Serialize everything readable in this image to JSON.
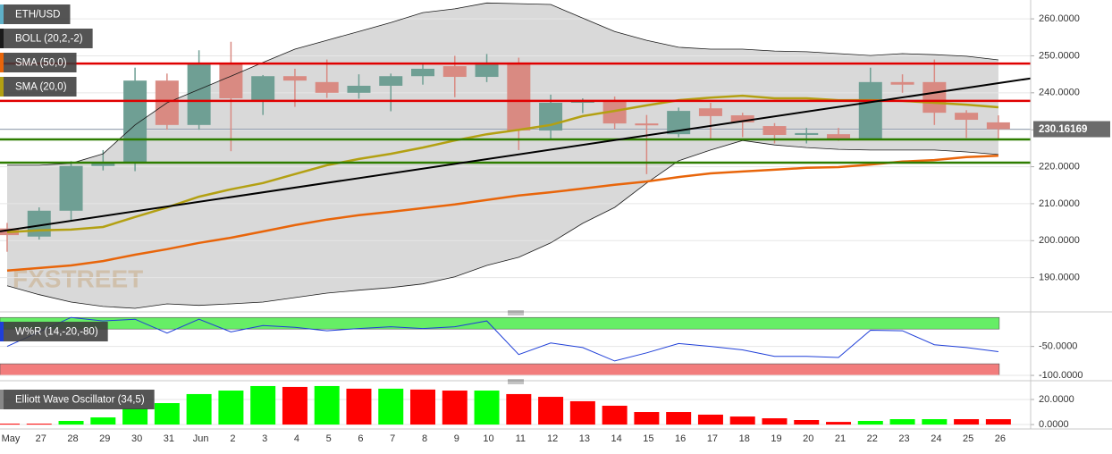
{
  "chart_data": [
    {
      "type": "candlestick",
      "categories": [
        "May",
        "27",
        "28",
        "29",
        "30",
        "31",
        "Jun",
        "2",
        "3",
        "4",
        "5",
        "6",
        "7",
        "8",
        "9",
        "10",
        "11",
        "12",
        "13",
        "14",
        "15",
        "16",
        "17",
        "18",
        "19",
        "20",
        "21",
        "22",
        "23",
        "24",
        "25",
        "26"
      ],
      "series": [
        {
          "name": "ETH/USD",
          "color": "#5fb0c8",
          "up_color": "#6f9f94",
          "down_color": "#d98a82",
          "open": [
            203.3,
            201.1,
            208.1,
            220.2,
            221.0,
            243.3,
            231.3,
            247.7,
            237.8,
            244.5,
            242.9,
            240.0,
            241.9,
            244.5,
            247.2,
            244.3,
            248.2,
            229.8,
            237.3,
            238.0,
            231.7,
            228.8,
            235.8,
            233.9,
            231.0,
            228.6,
            228.8,
            227.6,
            242.9,
            242.9,
            234.6,
            232.0
          ],
          "high": [
            204.8,
            209.0,
            221.5,
            224.5,
            246.8,
            245.2,
            251.5,
            253.8,
            244.8,
            246.5,
            249.0,
            245.0,
            245.2,
            248.0,
            250.0,
            250.5,
            249.5,
            239.5,
            238.5,
            239.0,
            234.0,
            236.0,
            237.3,
            234.6,
            231.8,
            230.5,
            230.5,
            246.8,
            245.0,
            249.0,
            235.3,
            233.9
          ],
          "low": [
            197.0,
            200.3,
            205.5,
            219.0,
            218.8,
            230.0,
            230.0,
            224.2,
            234.0,
            236.2,
            238.6,
            238.4,
            235.0,
            242.2,
            238.8,
            242.9,
            224.5,
            227.3,
            234.5,
            230.2,
            218.0,
            228.0,
            227.5,
            228.0,
            226.3,
            226.3,
            227.0,
            227.5,
            240.0,
            231.3,
            227.8,
            227.6
          ],
          "close": [
            201.5,
            208.1,
            220.2,
            221.0,
            243.3,
            231.3,
            247.7,
            238.5,
            244.5,
            243.3,
            240.0,
            241.9,
            244.5,
            246.5,
            244.3,
            248.2,
            229.8,
            237.3,
            238.0,
            231.7,
            231.2,
            235.1,
            233.7,
            232.0,
            228.6,
            229.1,
            227.6,
            242.9,
            242.2,
            234.6,
            232.7,
            230.16
          ]
        },
        {
          "name": "BOLL (20,2,-2)",
          "type": "band",
          "color": "#1a1a1a",
          "fill": "#d9d9d9",
          "upper": [
            220.4,
            220.4,
            220.9,
            223.5,
            231.3,
            237.3,
            240.9,
            244.5,
            248.2,
            251.8,
            254.2,
            256.6,
            259.0,
            261.7,
            262.7,
            264.3,
            264.1,
            263.9,
            260.2,
            256.6,
            254.2,
            252.3,
            251.8,
            251.8,
            251.3,
            251.1,
            250.6,
            250.1,
            250.6,
            250.3,
            249.9,
            248.9
          ],
          "lower": [
            187.8,
            185.4,
            183.4,
            182.2,
            181.7,
            182.9,
            182.5,
            182.9,
            183.4,
            184.6,
            185.8,
            186.6,
            187.3,
            188.3,
            190.2,
            193.3,
            195.5,
            199.4,
            204.7,
            209.0,
            215.6,
            221.6,
            224.5,
            227.1,
            225.9,
            225.2,
            224.7,
            224.5,
            224.5,
            224.5,
            224.0,
            223.3
          ]
        },
        {
          "name": "SMA (50,0)",
          "type": "line",
          "color": "#e8650a",
          "values": [
            191.9,
            192.6,
            193.3,
            194.5,
            196.2,
            197.7,
            199.4,
            200.8,
            202.5,
            204.2,
            205.7,
            206.9,
            207.8,
            208.8,
            209.8,
            211.0,
            212.2,
            213.1,
            214.1,
            215.1,
            216.0,
            217.2,
            218.2,
            218.7,
            219.2,
            219.7,
            219.9,
            220.6,
            221.4,
            221.8,
            222.6,
            223.0
          ]
        },
        {
          "name": "SMA (20,0)",
          "type": "line",
          "color": "#b3a012",
          "values": [
            202.3,
            202.8,
            203.0,
            203.7,
            206.4,
            209.0,
            211.9,
            213.9,
            215.6,
            218.0,
            220.4,
            222.1,
            223.5,
            225.2,
            227.1,
            228.8,
            230.0,
            231.3,
            233.7,
            235.1,
            236.6,
            238.0,
            238.7,
            239.2,
            238.5,
            238.5,
            238.0,
            238.0,
            237.8,
            237.3,
            236.8,
            236.1
          ]
        }
      ],
      "hlines": [
        {
          "value": 247.9,
          "color": "#e00000"
        },
        {
          "value": 237.8,
          "color": "#e00000"
        },
        {
          "value": 227.4,
          "color": "#2e7d00"
        },
        {
          "value": 221.1,
          "color": "#2e7d00"
        }
      ],
      "trendline": {
        "values": [
          202.8,
          242.6
        ],
        "color": "#000000"
      },
      "last_price": 230.16169,
      "watermark": "FXSTREET",
      "ylim": [
        181.7,
        265.1
      ],
      "yticks": [
        {
          "value": 190,
          "label": "190.0000"
        },
        {
          "value": 200,
          "label": "200.0000"
        },
        {
          "value": 210,
          "label": "210.0000"
        },
        {
          "value": 220,
          "label": "220.0000"
        },
        {
          "value": 230,
          "label": "230.0000"
        },
        {
          "value": 240,
          "label": "240.0000"
        },
        {
          "value": 250,
          "label": "250.0000"
        },
        {
          "value": 260,
          "label": "260.0000"
        }
      ],
      "grid": true,
      "legend": "top-left"
    },
    {
      "type": "line",
      "series": [
        {
          "name": "W%R (14,-20,-80)",
          "color": "#1f3fd8",
          "values": [
            -50,
            -25,
            0,
            -6,
            -3,
            -27,
            -3,
            -25,
            -14,
            -17,
            -23,
            -19,
            -16,
            -19,
            -16,
            -6,
            -64,
            -44,
            -52,
            -75,
            -61,
            -45,
            -50,
            -56,
            -67,
            -67,
            -69,
            -22,
            -23,
            -47,
            -52,
            -59
          ]
        }
      ],
      "bands": [
        {
          "from": 0,
          "to": -20,
          "color": "#66ee66"
        },
        {
          "from": -80,
          "to": -100,
          "color": "#f27c7c"
        }
      ],
      "ylim": [
        -103,
        5
      ],
      "yticks": [
        {
          "value": -50,
          "label": "-50.0000"
        },
        {
          "value": -100,
          "label": "-100.0000"
        }
      ],
      "grid": true,
      "legend": "top-left"
    },
    {
      "type": "bar",
      "series": [
        {
          "name": "Elliott Wave Oscillator (34,5)",
          "color": "#888888",
          "values": [
            0.7,
            0.7,
            2.9,
            5.7,
            12.9,
            17.1,
            24.3,
            27.1,
            30.7,
            30.0,
            30.7,
            28.6,
            28.6,
            27.9,
            27.1,
            27.1,
            24.3,
            22.1,
            18.6,
            15.0,
            10.0,
            10.0,
            7.9,
            6.4,
            5.0,
            3.6,
            2.1,
            2.9,
            4.3,
            4.3,
            4.3,
            4.3
          ],
          "colors": [
            "#ff0000",
            "#ff0000",
            "#00ff00",
            "#00ff00",
            "#00ff00",
            "#00ff00",
            "#00ff00",
            "#00ff00",
            "#00ff00",
            "#ff0000",
            "#00ff00",
            "#ff0000",
            "#00ff00",
            "#ff0000",
            "#ff0000",
            "#00ff00",
            "#ff0000",
            "#ff0000",
            "#ff0000",
            "#ff0000",
            "#ff0000",
            "#ff0000",
            "#ff0000",
            "#ff0000",
            "#ff0000",
            "#ff0000",
            "#ff0000",
            "#00ff00",
            "#00ff00",
            "#00ff00",
            "#ff0000",
            "#ff0000"
          ]
        }
      ],
      "ylim": [
        -2.1,
        32.1
      ],
      "yticks": [
        {
          "value": 0,
          "label": "0.0000"
        },
        {
          "value": 20,
          "label": "20.0000"
        }
      ],
      "grid": true,
      "legend": "top-left"
    }
  ]
}
